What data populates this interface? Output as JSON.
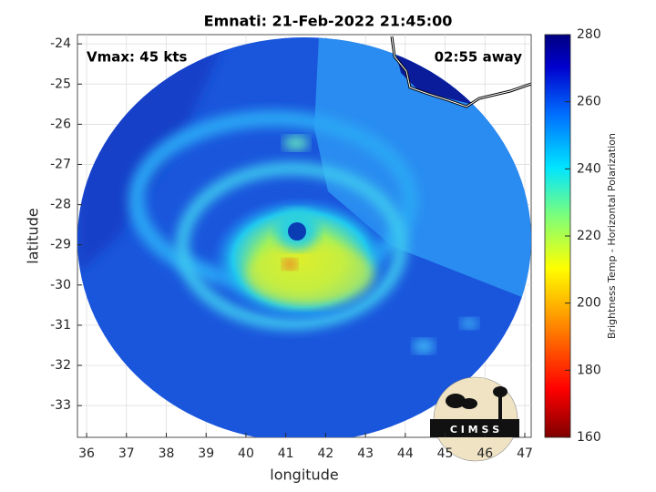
{
  "chart_data": {
    "type": "map",
    "title": "Emnati: 21-Feb-2022 21:45:00",
    "xlabel": "longitude",
    "ylabel": "latitude",
    "xlim": [
      35.77,
      47.16
    ],
    "ylim": [
      -33.79,
      -23.77
    ],
    "xticks": [
      36,
      37,
      38,
      39,
      40,
      41,
      42,
      43,
      44,
      45,
      46,
      47
    ],
    "yticks": [
      -24,
      -25,
      -26,
      -27,
      -28,
      -29,
      -30,
      -31,
      -32,
      -33
    ],
    "grid": true,
    "annotations": [
      "Vmax: 45 kts",
      "02:55 away"
    ],
    "colorbar": {
      "label": "Brightness Temp - Horizontal Polarization",
      "lim": [
        160,
        280
      ],
      "ticks": [
        160,
        180,
        200,
        220,
        240,
        260,
        280
      ]
    },
    "logo_text": "C I M S S"
  }
}
